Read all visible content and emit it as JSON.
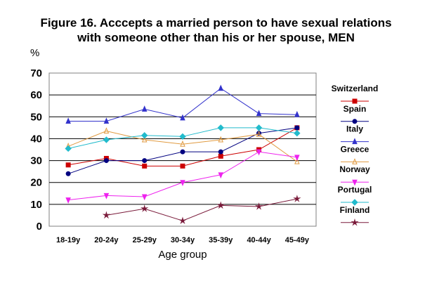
{
  "title_line_1": "Figure 16. Acccepts a married person to have sexual relations",
  "title_line_2": "with someone other than his or her spouse, MEN",
  "chart_data": {
    "type": "line",
    "title": "Figure 16. Acccepts a married person to have sexual relations with someone other than his or her spouse, MEN",
    "ylabel": "%",
    "xlabel": "Age group",
    "categories": [
      "18-19y",
      "20-24y",
      "25-29y",
      "30-34y",
      "35-39y",
      "40-44y",
      "45-49y"
    ],
    "ylim": [
      0,
      70
    ],
    "yticks": [
      0,
      10,
      20,
      30,
      40,
      50,
      60,
      70
    ],
    "grid": true,
    "legend": "right",
    "series": [
      {
        "name": "Switzerland",
        "color": "#cc0000",
        "marker": "square",
        "values": [
          28,
          31,
          27.5,
          27.5,
          32,
          35,
          45
        ]
      },
      {
        "name": "Spain",
        "color": "#000080",
        "marker": "circle",
        "values": [
          24,
          30,
          30,
          34,
          34,
          42.5,
          45
        ]
      },
      {
        "name": "Italy",
        "color": "#3333cc",
        "marker": "triangle",
        "values": [
          48,
          48,
          53.5,
          49.5,
          63,
          51.5,
          51
        ]
      },
      {
        "name": "Greece",
        "color": "#e09a40",
        "marker": "triangle-open",
        "values": [
          36.5,
          43.5,
          39.5,
          37.5,
          39.5,
          42,
          29.5
        ]
      },
      {
        "name": "Norway",
        "color": "#ee22ee",
        "marker": "triangle-down",
        "values": [
          12,
          14,
          13.5,
          20,
          23.5,
          34,
          31.5
        ]
      },
      {
        "name": "Portugal",
        "color": "#22bbcc",
        "marker": "diamond",
        "values": [
          35.5,
          39.5,
          41.5,
          41,
          45,
          45,
          42.5
        ]
      },
      {
        "name": "Finland",
        "color": "#7a1a3a",
        "marker": "star",
        "values": [
          null,
          5,
          8,
          2.5,
          9.5,
          9,
          12.5
        ]
      }
    ]
  }
}
